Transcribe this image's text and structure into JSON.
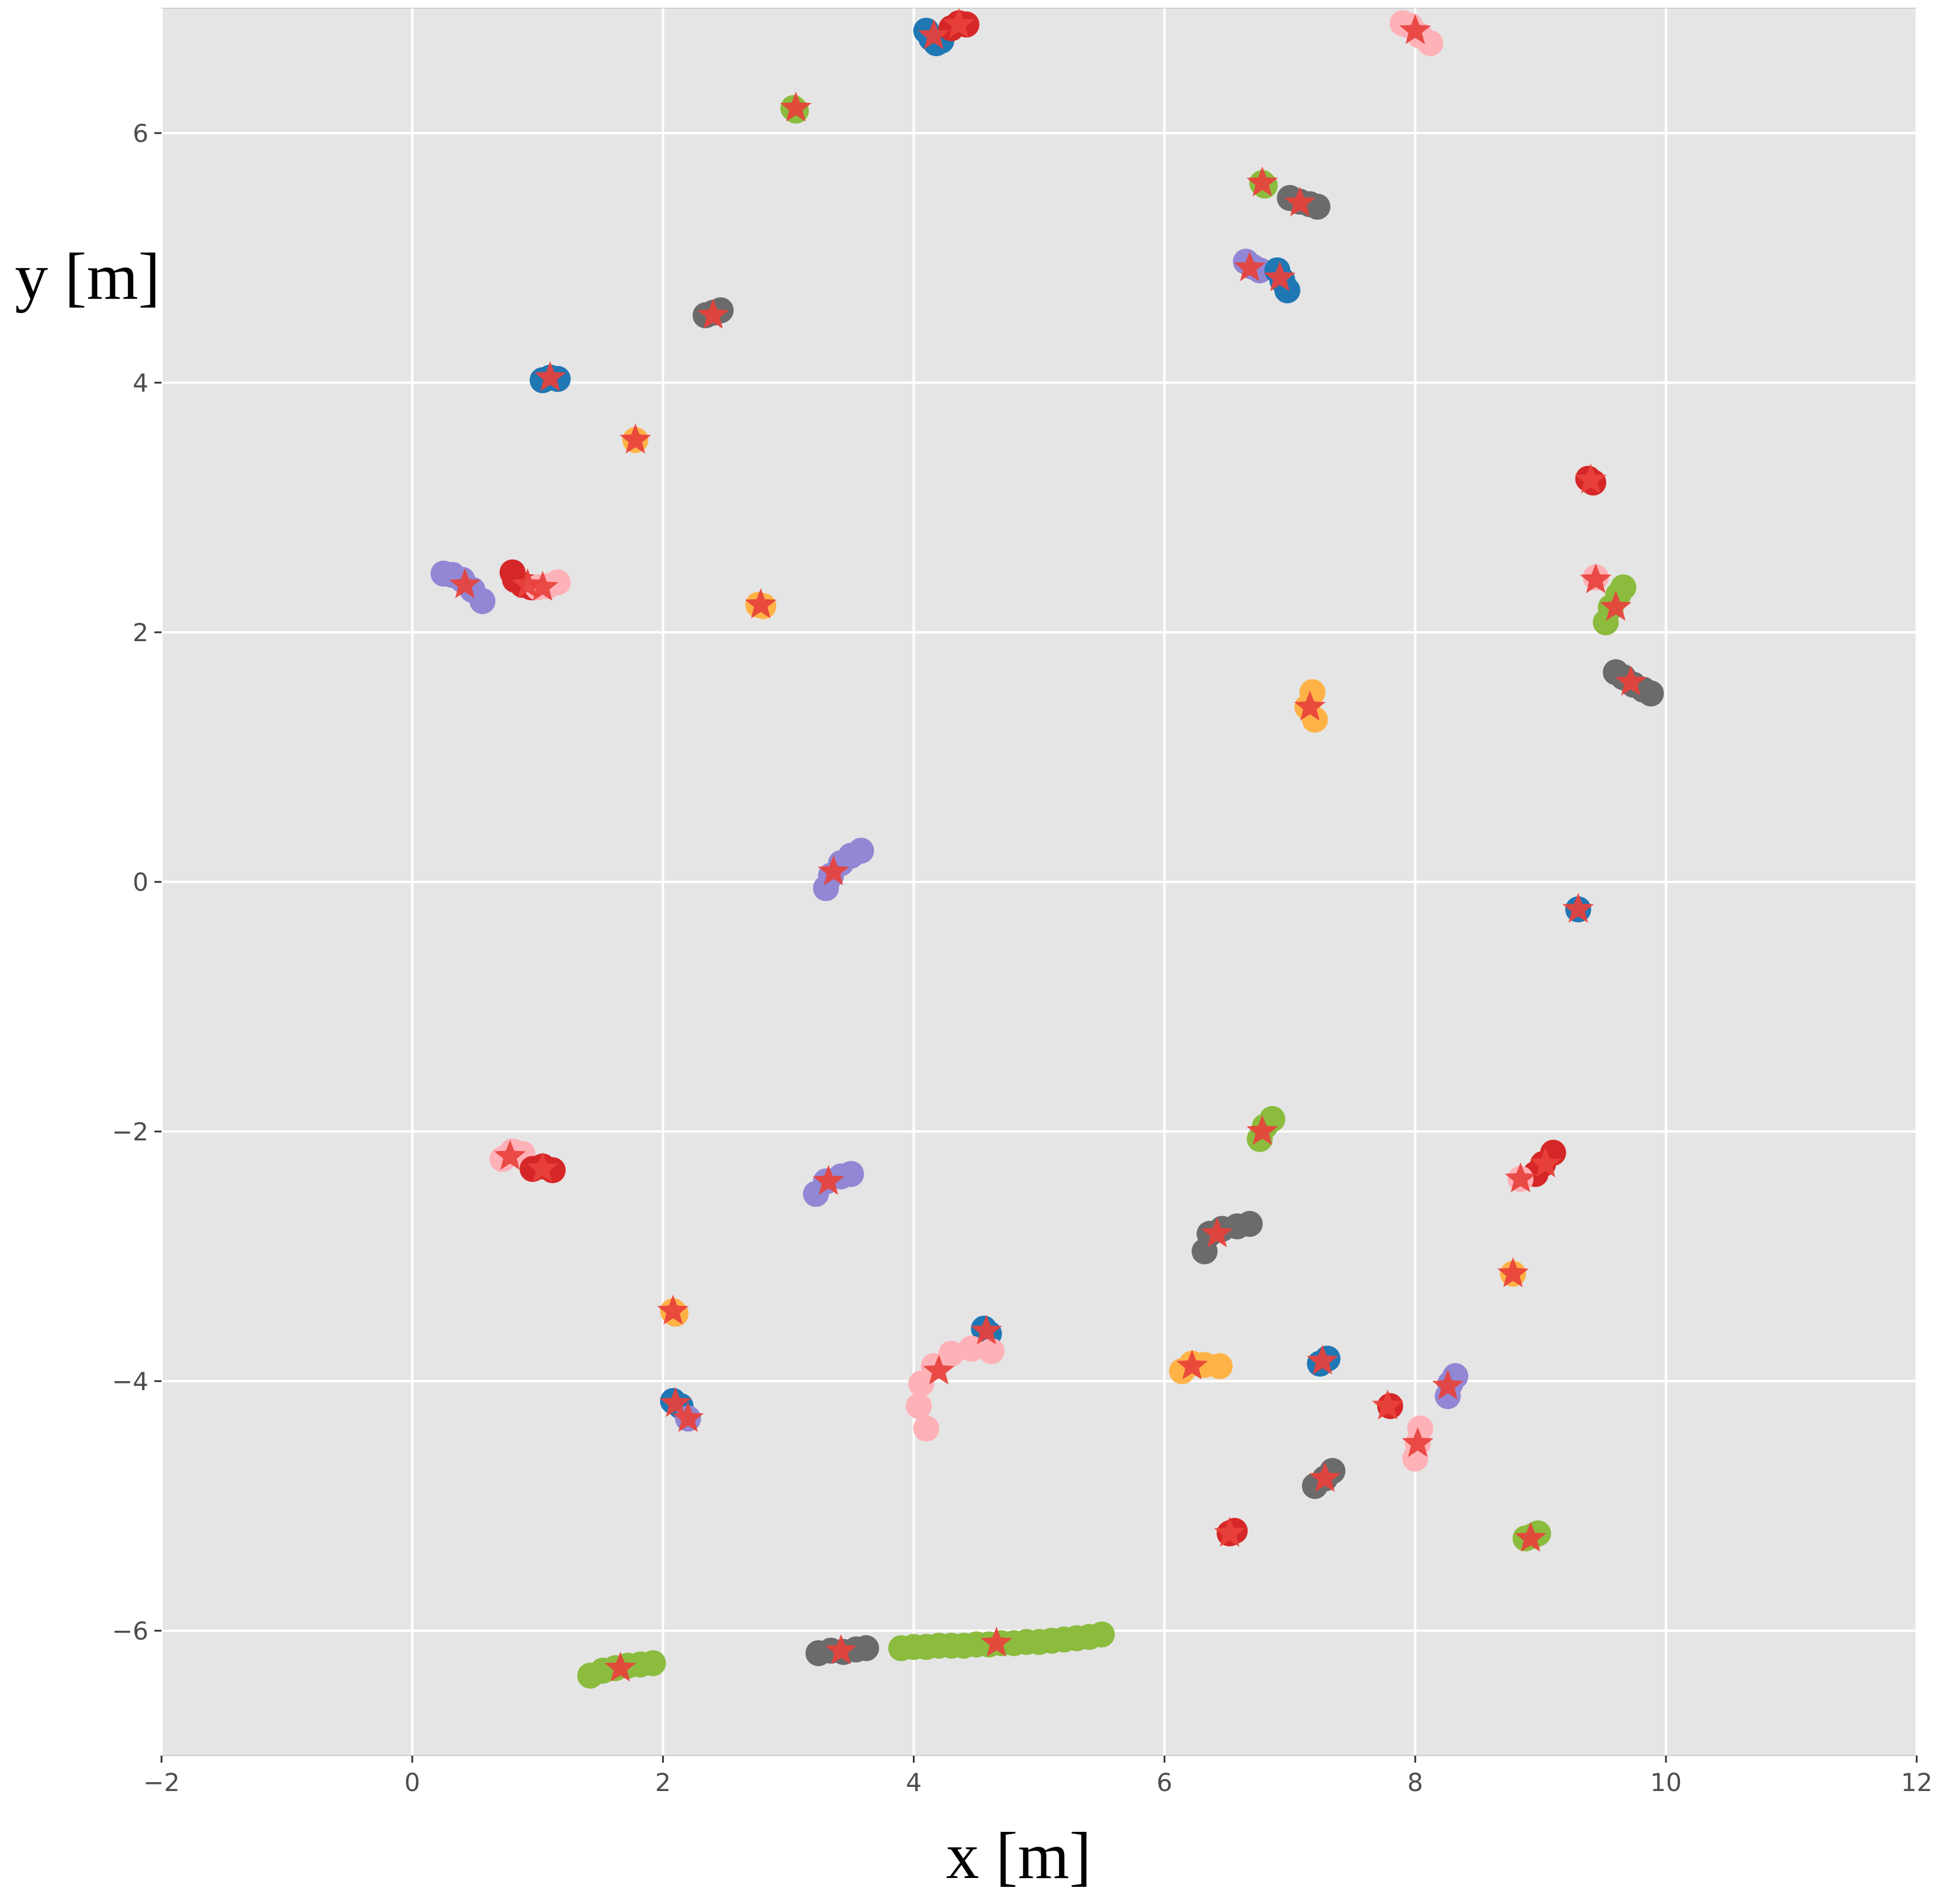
{
  "chart_data": {
    "type": "scatter",
    "title": "",
    "xlabel": "x [m]",
    "ylabel": "y [m]",
    "xlim": [
      -2,
      12
    ],
    "ylim": [
      -7,
      7
    ],
    "xticks": [
      -2,
      0,
      2,
      4,
      6,
      8,
      10,
      12
    ],
    "yticks": [
      -6,
      -4,
      -2,
      0,
      2,
      4,
      6
    ],
    "xtick_labels": [
      "−2",
      "0",
      "2",
      "4",
      "6",
      "8",
      "10",
      "12"
    ],
    "ytick_labels": [
      "−6",
      "−4",
      "−2",
      "0",
      "2",
      "4",
      "6"
    ],
    "grid": true,
    "background": "#e5e5e5",
    "grid_color": "#ffffff",
    "marker_color": "#e8413b",
    "series_colors": {
      "blue": "#1f77b4",
      "red": "#d62728",
      "pink": "#ffb1b8",
      "purple": "#9187d4",
      "gray": "#6b6b6b",
      "orange": "#ffb347",
      "green": "#8bbc3e"
    },
    "tracks": [
      {
        "color": "blue",
        "points": [
          [
            4.1,
            6.82
          ],
          [
            4.14,
            6.76
          ],
          [
            4.18,
            6.72
          ],
          [
            4.22,
            6.74
          ]
        ]
      },
      {
        "color": "red",
        "points": [
          [
            4.3,
            6.84
          ],
          [
            4.36,
            6.88
          ],
          [
            4.42,
            6.87
          ]
        ]
      },
      {
        "color": "pink",
        "points": [
          [
            7.9,
            6.88
          ],
          [
            7.96,
            6.86
          ],
          [
            8.04,
            6.78
          ],
          [
            8.12,
            6.72
          ]
        ]
      },
      {
        "color": "green",
        "points": [
          [
            3.04,
            6.2
          ],
          [
            3.06,
            6.18
          ]
        ]
      },
      {
        "color": "green",
        "points": [
          [
            6.78,
            5.6
          ],
          [
            6.8,
            5.58
          ]
        ]
      },
      {
        "color": "gray",
        "points": [
          [
            7.0,
            5.48
          ],
          [
            7.08,
            5.45
          ],
          [
            7.16,
            5.43
          ],
          [
            7.22,
            5.41
          ]
        ]
      },
      {
        "color": "purple",
        "points": [
          [
            6.65,
            4.97
          ],
          [
            6.7,
            4.93
          ],
          [
            6.76,
            4.9
          ]
        ]
      },
      {
        "color": "blue",
        "points": [
          [
            6.9,
            4.9
          ],
          [
            6.94,
            4.82
          ],
          [
            6.98,
            4.74
          ]
        ]
      },
      {
        "color": "gray",
        "points": [
          [
            2.34,
            4.54
          ],
          [
            2.4,
            4.56
          ],
          [
            2.46,
            4.58
          ]
        ]
      },
      {
        "color": "blue",
        "points": [
          [
            1.04,
            4.02
          ],
          [
            1.1,
            4.04
          ],
          [
            1.16,
            4.03
          ]
        ]
      },
      {
        "color": "orange",
        "points": [
          [
            1.78,
            3.54
          ]
        ]
      },
      {
        "color": "red",
        "points": [
          [
            9.38,
            3.23
          ],
          [
            9.42,
            3.2
          ]
        ]
      },
      {
        "color": "purple",
        "points": [
          [
            0.25,
            2.47
          ],
          [
            0.32,
            2.46
          ],
          [
            0.4,
            2.42
          ],
          [
            0.48,
            2.34
          ],
          [
            0.56,
            2.25
          ]
        ]
      },
      {
        "color": "red",
        "points": [
          [
            0.8,
            2.48
          ],
          [
            0.82,
            2.42
          ],
          [
            0.88,
            2.38
          ],
          [
            0.95,
            2.36
          ]
        ]
      },
      {
        "color": "pink",
        "points": [
          [
            1.0,
            2.36
          ],
          [
            1.08,
            2.37
          ],
          [
            1.16,
            2.4
          ]
        ]
      },
      {
        "color": "orange",
        "points": [
          [
            2.76,
            2.22
          ],
          [
            2.8,
            2.21
          ]
        ]
      },
      {
        "color": "pink",
        "points": [
          [
            9.44,
            2.44
          ]
        ]
      },
      {
        "color": "green",
        "points": [
          [
            9.52,
            2.08
          ],
          [
            9.56,
            2.2
          ],
          [
            9.62,
            2.3
          ],
          [
            9.66,
            2.36
          ]
        ]
      },
      {
        "color": "gray",
        "points": [
          [
            9.6,
            1.68
          ],
          [
            9.66,
            1.64
          ],
          [
            9.74,
            1.58
          ],
          [
            9.82,
            1.54
          ],
          [
            9.88,
            1.51
          ]
        ]
      },
      {
        "color": "orange",
        "points": [
          [
            7.18,
            1.52
          ],
          [
            7.14,
            1.4
          ],
          [
            7.2,
            1.3
          ]
        ]
      },
      {
        "color": "purple",
        "points": [
          [
            3.3,
            -0.05
          ],
          [
            3.34,
            0.05
          ],
          [
            3.42,
            0.15
          ],
          [
            3.5,
            0.21
          ],
          [
            3.58,
            0.25
          ]
        ]
      },
      {
        "color": "blue",
        "points": [
          [
            9.3,
            -0.22
          ]
        ]
      },
      {
        "color": "green",
        "points": [
          [
            6.76,
            -2.06
          ],
          [
            6.8,
            -1.96
          ],
          [
            6.86,
            -1.9
          ]
        ]
      },
      {
        "color": "pink",
        "points": [
          [
            0.72,
            -2.22
          ],
          [
            0.8,
            -2.16
          ],
          [
            0.88,
            -2.18
          ]
        ]
      },
      {
        "color": "red",
        "points": [
          [
            0.96,
            -2.3
          ],
          [
            1.04,
            -2.28
          ],
          [
            1.12,
            -2.31
          ]
        ]
      },
      {
        "color": "purple",
        "points": [
          [
            3.22,
            -2.5
          ],
          [
            3.3,
            -2.4
          ],
          [
            3.42,
            -2.36
          ],
          [
            3.5,
            -2.34
          ]
        ]
      },
      {
        "color": "red",
        "points": [
          [
            8.96,
            -2.34
          ],
          [
            9.02,
            -2.26
          ],
          [
            9.1,
            -2.17
          ]
        ]
      },
      {
        "color": "pink",
        "points": [
          [
            8.84,
            -2.38
          ]
        ]
      },
      {
        "color": "gray",
        "points": [
          [
            6.32,
            -2.96
          ],
          [
            6.36,
            -2.82
          ],
          [
            6.46,
            -2.78
          ],
          [
            6.58,
            -2.76
          ],
          [
            6.68,
            -2.74
          ]
        ]
      },
      {
        "color": "orange",
        "points": [
          [
            8.78,
            -3.14
          ]
        ]
      },
      {
        "color": "orange",
        "points": [
          [
            2.08,
            -3.44
          ],
          [
            2.1,
            -3.46
          ]
        ]
      },
      {
        "color": "blue",
        "points": [
          [
            4.56,
            -3.58
          ],
          [
            4.6,
            -3.62
          ]
        ]
      },
      {
        "color": "pink",
        "points": [
          [
            4.1,
            -4.38
          ],
          [
            4.04,
            -4.2
          ],
          [
            4.06,
            -4.02
          ],
          [
            4.16,
            -3.88
          ],
          [
            4.3,
            -3.78
          ],
          [
            4.46,
            -3.74
          ],
          [
            4.62,
            -3.76
          ]
        ]
      },
      {
        "color": "orange",
        "points": [
          [
            6.14,
            -3.92
          ],
          [
            6.22,
            -3.86
          ],
          [
            6.32,
            -3.87
          ],
          [
            6.44,
            -3.88
          ]
        ]
      },
      {
        "color": "blue",
        "points": [
          [
            7.24,
            -3.86
          ],
          [
            7.3,
            -3.82
          ]
        ]
      },
      {
        "color": "purple",
        "points": [
          [
            8.26,
            -4.12
          ],
          [
            8.28,
            -4.02
          ],
          [
            8.32,
            -3.96
          ]
        ]
      },
      {
        "color": "blue",
        "points": [
          [
            2.08,
            -4.16
          ],
          [
            2.14,
            -4.2
          ]
        ]
      },
      {
        "color": "purple",
        "points": [
          [
            2.2,
            -4.3
          ]
        ]
      },
      {
        "color": "red",
        "points": [
          [
            7.8,
            -4.2
          ]
        ]
      },
      {
        "color": "pink",
        "points": [
          [
            8.0,
            -4.62
          ],
          [
            8.02,
            -4.5
          ],
          [
            8.04,
            -4.38
          ]
        ]
      },
      {
        "color": "gray",
        "points": [
          [
            7.2,
            -4.84
          ],
          [
            7.28,
            -4.78
          ],
          [
            7.34,
            -4.72
          ]
        ]
      },
      {
        "color": "red",
        "points": [
          [
            6.52,
            -5.22
          ],
          [
            6.56,
            -5.2
          ]
        ]
      },
      {
        "color": "green",
        "points": [
          [
            8.88,
            -5.26
          ],
          [
            8.94,
            -5.24
          ],
          [
            8.98,
            -5.22
          ]
        ]
      },
      {
        "color": "gray",
        "points": [
          [
            3.24,
            -6.18
          ],
          [
            3.34,
            -6.16
          ],
          [
            3.44,
            -6.17
          ],
          [
            3.54,
            -6.15
          ],
          [
            3.62,
            -6.14
          ]
        ]
      },
      {
        "color": "green",
        "points": [
          [
            1.42,
            -6.36
          ],
          [
            1.52,
            -6.32
          ],
          [
            1.62,
            -6.3
          ],
          [
            1.72,
            -6.28
          ],
          [
            1.82,
            -6.27
          ],
          [
            1.92,
            -6.26
          ]
        ]
      },
      {
        "color": "green",
        "points": [
          [
            3.9,
            -6.14
          ],
          [
            4.0,
            -6.13
          ],
          [
            4.1,
            -6.13
          ],
          [
            4.2,
            -6.12
          ],
          [
            4.3,
            -6.12
          ],
          [
            4.4,
            -6.12
          ],
          [
            4.5,
            -6.11
          ],
          [
            4.6,
            -6.11
          ],
          [
            4.7,
            -6.1
          ],
          [
            4.8,
            -6.1
          ],
          [
            4.9,
            -6.09
          ],
          [
            5.0,
            -6.09
          ],
          [
            5.1,
            -6.08
          ],
          [
            5.2,
            -6.07
          ],
          [
            5.3,
            -6.06
          ],
          [
            5.4,
            -6.05
          ],
          [
            5.5,
            -6.03
          ]
        ]
      }
    ],
    "stars": [
      [
        4.16,
        6.78
      ],
      [
        4.36,
        6.87
      ],
      [
        8.0,
        6.82
      ],
      [
        3.06,
        6.2
      ],
      [
        6.78,
        5.6
      ],
      [
        7.08,
        5.44
      ],
      [
        6.68,
        4.92
      ],
      [
        6.92,
        4.84
      ],
      [
        2.4,
        4.54
      ],
      [
        1.1,
        4.04
      ],
      [
        1.78,
        3.54
      ],
      [
        9.4,
        3.22
      ],
      [
        0.42,
        2.38
      ],
      [
        0.92,
        2.38
      ],
      [
        1.04,
        2.36
      ],
      [
        2.78,
        2.22
      ],
      [
        9.44,
        2.42
      ],
      [
        9.6,
        2.2
      ],
      [
        9.72,
        1.6
      ],
      [
        7.16,
        1.4
      ],
      [
        3.36,
        0.08
      ],
      [
        9.3,
        -0.22
      ],
      [
        6.78,
        -2.0
      ],
      [
        0.78,
        -2.2
      ],
      [
        1.04,
        -2.3
      ],
      [
        3.32,
        -2.4
      ],
      [
        8.84,
        -2.38
      ],
      [
        9.04,
        -2.26
      ],
      [
        6.42,
        -2.82
      ],
      [
        8.78,
        -3.14
      ],
      [
        2.08,
        -3.44
      ],
      [
        4.58,
        -3.6
      ],
      [
        4.2,
        -3.92
      ],
      [
        6.22,
        -3.88
      ],
      [
        7.26,
        -3.84
      ],
      [
        8.26,
        -4.04
      ],
      [
        2.1,
        -4.18
      ],
      [
        2.2,
        -4.3
      ],
      [
        7.78,
        -4.2
      ],
      [
        8.02,
        -4.5
      ],
      [
        7.28,
        -4.78
      ],
      [
        6.52,
        -5.22
      ],
      [
        8.92,
        -5.26
      ],
      [
        3.42,
        -6.16
      ],
      [
        1.66,
        -6.3
      ],
      [
        4.66,
        -6.1
      ]
    ]
  }
}
